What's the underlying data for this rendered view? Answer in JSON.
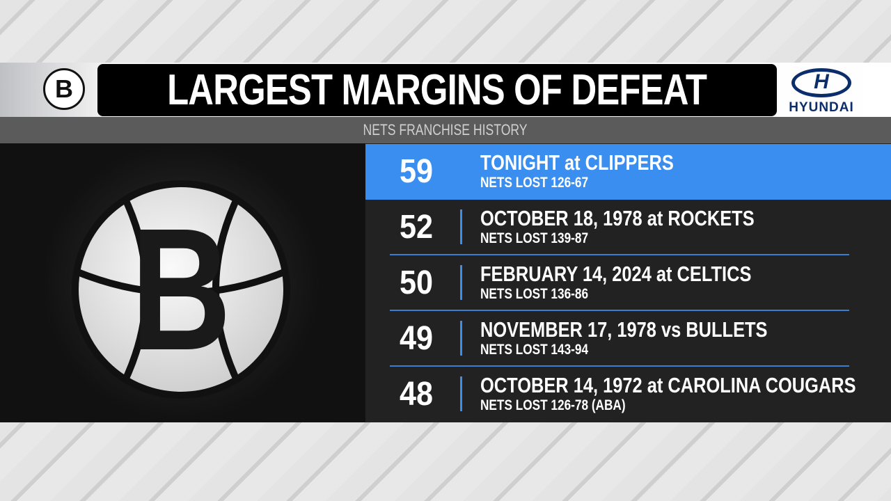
{
  "header": {
    "title": "LARGEST MARGINS OF DEFEAT",
    "subtitle": "NETS FRANCHISE HISTORY",
    "team_logo_letter": "B",
    "sponsor": "HYUNDAI",
    "sponsor_mark": "H"
  },
  "colors": {
    "accent": "#3a8ef0",
    "panel": "#222222",
    "title_bg": "#000000"
  },
  "rows": [
    {
      "margin": "59",
      "game": "TONIGHT at CLIPPERS",
      "result": "NETS LOST 126-67",
      "highlight": true
    },
    {
      "margin": "52",
      "game": "OCTOBER 18, 1978 at ROCKETS",
      "result": "NETS LOST 139-87"
    },
    {
      "margin": "50",
      "game": "FEBRUARY 14, 2024 at CELTICS",
      "result": "NETS LOST 136-86"
    },
    {
      "margin": "49",
      "game": "NOVEMBER 17, 1978 vs BULLETS",
      "result": "NETS LOST 143-94"
    },
    {
      "margin": "48",
      "game": "OCTOBER 14, 1972 at CAROLINA COUGARS",
      "result": "NETS LOST 126-78 (ABA)"
    }
  ]
}
